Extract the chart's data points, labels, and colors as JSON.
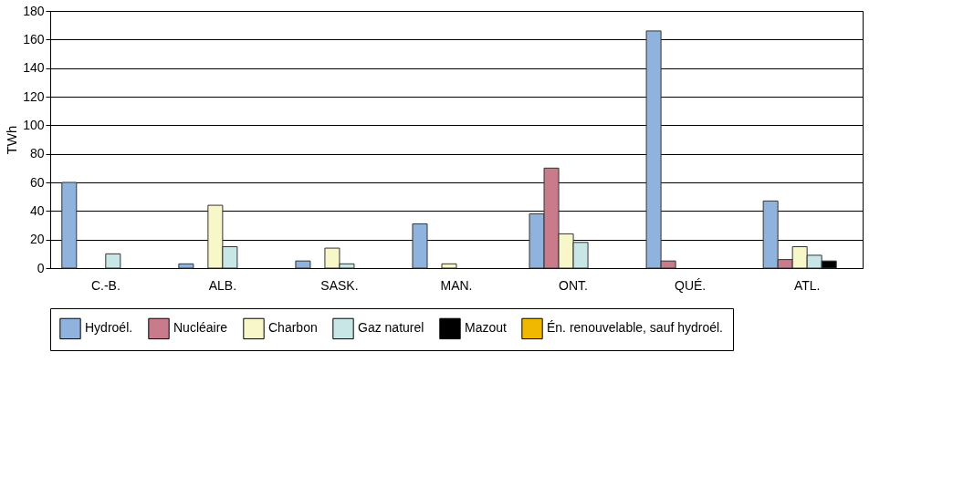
{
  "chart_data": {
    "type": "bar",
    "ylabel": "TWh",
    "categories": [
      "C.-B.",
      "ALB.",
      "SASK.",
      "MAN.",
      "ONT.",
      "QUÉ.",
      "ATL."
    ],
    "series": [
      {
        "name": "Hydroél.",
        "color": "#8fb3dc",
        "values": [
          60,
          3,
          5,
          31,
          38,
          166,
          47
        ]
      },
      {
        "name": "Nucléaire",
        "color": "#c77b8b",
        "values": [
          null,
          null,
          null,
          null,
          70,
          5,
          6
        ]
      },
      {
        "name": "Charbon",
        "color": "#f7f7c9",
        "values": [
          null,
          44,
          14,
          3,
          24,
          null,
          15
        ]
      },
      {
        "name": "Gaz naturel",
        "color": "#c9e6e6",
        "values": [
          10,
          15,
          3,
          null,
          18,
          null,
          9
        ]
      },
      {
        "name": "Mazout",
        "color": "#000000",
        "values": [
          null,
          null,
          null,
          null,
          null,
          null,
          5
        ]
      },
      {
        "name": "Én. renouvelable, sauf hydroél.",
        "color": "#f0b800",
        "values": [
          null,
          null,
          null,
          null,
          null,
          null,
          null
        ]
      }
    ],
    "ylim": [
      0,
      180
    ],
    "yticks": [
      0,
      20,
      40,
      60,
      80,
      100,
      120,
      140,
      160,
      180
    ],
    "grid": "y",
    "legend": "bottom"
  }
}
